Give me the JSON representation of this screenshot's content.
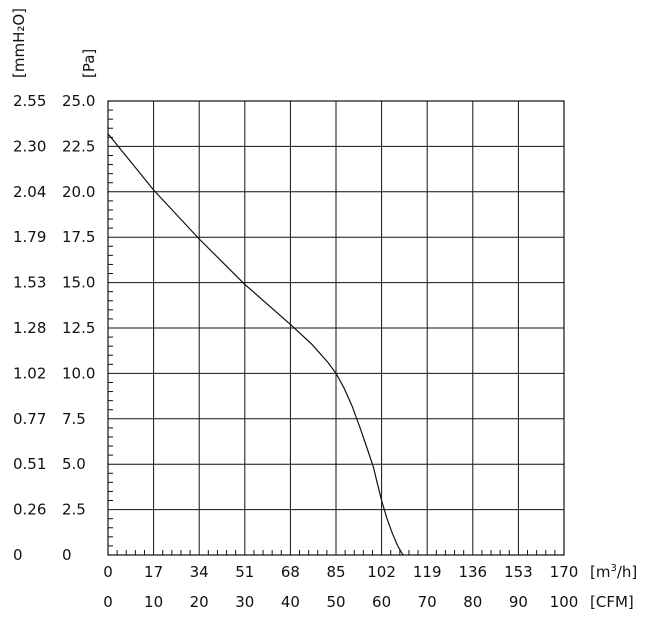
{
  "chart_data": {
    "type": "line",
    "title": "",
    "left_units": {
      "mmH2O": "[mmH₂O]",
      "Pa": "[Pa]"
    },
    "x_units": {
      "m3h": "[m³/h]",
      "cfm": "[CFM]"
    },
    "xlim_m3h": [
      0,
      170
    ],
    "ylim_pa": [
      0,
      25
    ],
    "grid": true,
    "x_ticks_m3h": [
      "0",
      "17",
      "34",
      "51",
      "68",
      "85",
      "102",
      "119",
      "136",
      "153",
      "170"
    ],
    "x_ticks_cfm": [
      "0",
      "10",
      "20",
      "30",
      "40",
      "50",
      "60",
      "70",
      "80",
      "90",
      "100"
    ],
    "y_ticks_pa": [
      "0",
      "2.5",
      "5.0",
      "7.5",
      "10.0",
      "12.5",
      "15.0",
      "17.5",
      "20.0",
      "22.5",
      "25.0"
    ],
    "y_ticks_mmh2o": [
      "0",
      "0.26",
      "0.51",
      "0.77",
      "1.02",
      "1.28",
      "1.53",
      "1.79",
      "2.04",
      "2.30",
      "2.55"
    ],
    "series": [
      {
        "x_m3h": [
          0,
          17,
          34,
          51,
          68,
          76,
          82,
          85,
          88,
          91,
          94,
          97,
          99,
          100,
          102,
          104,
          106,
          108,
          110
        ],
        "y_pa": [
          23.2,
          20.1,
          17.4,
          14.9,
          12.7,
          11.6,
          10.6,
          10.0,
          9.2,
          8.2,
          7.0,
          5.7,
          4.8,
          4.2,
          3.0,
          2.0,
          1.2,
          0.5,
          0
        ]
      }
    ]
  }
}
